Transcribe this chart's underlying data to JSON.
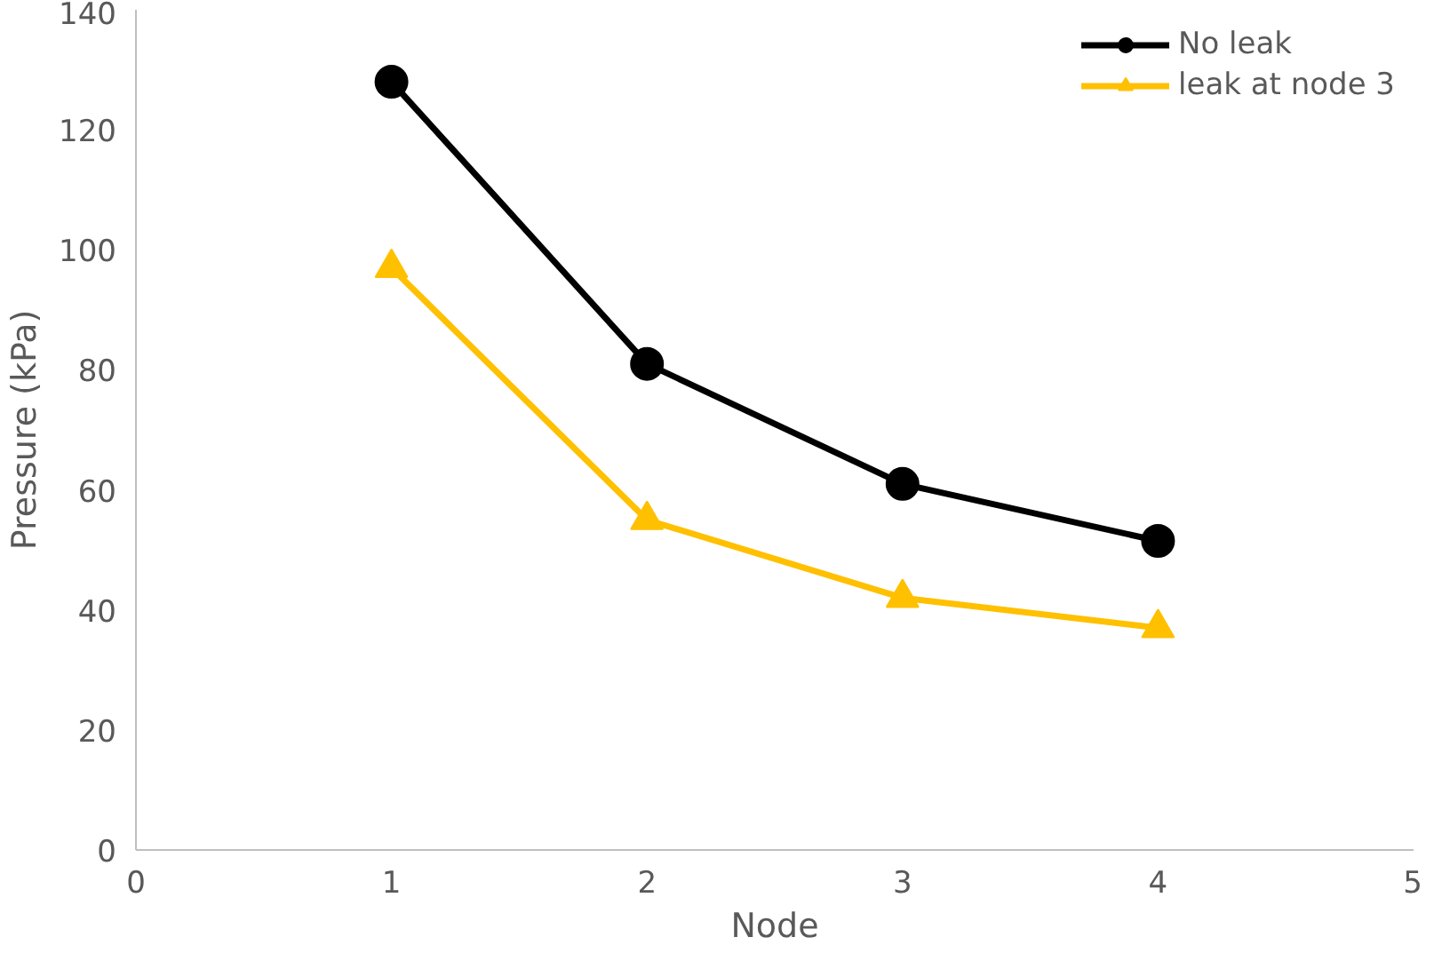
{
  "chart_data": {
    "type": "line",
    "xlabel": "Node",
    "ylabel": "Pressure (kPa)",
    "x": [
      1,
      2,
      3,
      4
    ],
    "series": [
      {
        "name": "No leak",
        "color": "#000000",
        "marker": "circle",
        "values": [
          128,
          81,
          61,
          51.5
        ]
      },
      {
        "name": "leak at node 3",
        "color": "#ffc000",
        "marker": "triangle",
        "values": [
          97,
          55,
          42,
          37
        ]
      }
    ],
    "xlim": [
      0,
      5
    ],
    "xticks": [
      0,
      1,
      2,
      3,
      4,
      5
    ],
    "ylim": [
      0,
      140
    ],
    "yticks": [
      0,
      20,
      40,
      60,
      80,
      100,
      120,
      140
    ],
    "grid": false,
    "legend": "top right",
    "line_style": "solid"
  }
}
